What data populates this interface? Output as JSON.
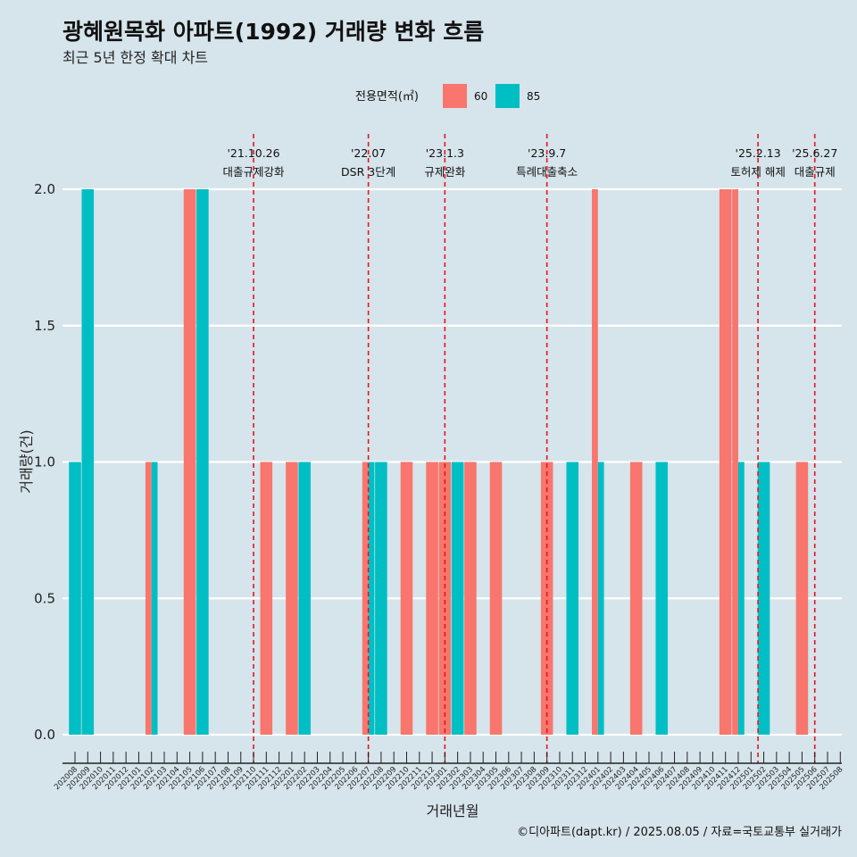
{
  "title": "광혜원목화 아파트(1992) 거래량 변화 흐름",
  "subtitle": "최근 5년 한정 확대 차트",
  "caption": "©디아파트(dapt.kr) / 2025.08.05 / 자료=국토교통부 실거래가",
  "colors": {
    "background": "#d6e4eb",
    "s60": "#f8766d",
    "s85": "#00bfc4",
    "vline": "#e8141b",
    "grid": "#ffffff"
  },
  "chart_data": {
    "type": "bar",
    "xlabel": "거래년월",
    "ylabel": "거래량(건)",
    "ylim": [
      0,
      2
    ],
    "yticks": [
      "0.0",
      "0.5",
      "1.0",
      "1.5",
      "2.0"
    ],
    "legend": {
      "title": "전용면적(㎡)",
      "position": "top"
    },
    "categories": [
      "202008",
      "202009",
      "202010",
      "202011",
      "202012",
      "202101",
      "202102",
      "202103",
      "202104",
      "202105",
      "202106",
      "202107",
      "202108",
      "202109",
      "202110",
      "202111",
      "202112",
      "202201",
      "202202",
      "202203",
      "202204",
      "202205",
      "202206",
      "202207",
      "202208",
      "202209",
      "202210",
      "202211",
      "202212",
      "202301",
      "202302",
      "202303",
      "202304",
      "202305",
      "202306",
      "202307",
      "202308",
      "202309",
      "202310",
      "202311",
      "202312",
      "202401",
      "202402",
      "202403",
      "202404",
      "202405",
      "202406",
      "202407",
      "202408",
      "202409",
      "202410",
      "202411",
      "202412",
      "202501",
      "202502",
      "202503",
      "202504",
      "202505",
      "202506",
      "202507",
      "202508"
    ],
    "bars": [
      {
        "month": "202008",
        "area": "85",
        "count": 1
      },
      {
        "month": "202009",
        "area": "85",
        "count": 2
      },
      {
        "month": "202102",
        "area": "60",
        "count": 1
      },
      {
        "month": "202102",
        "area": "85",
        "count": 1
      },
      {
        "month": "202105",
        "area": "60",
        "count": 2
      },
      {
        "month": "202106",
        "area": "85",
        "count": 2
      },
      {
        "month": "202111",
        "area": "60",
        "count": 1
      },
      {
        "month": "202201",
        "area": "60",
        "count": 1
      },
      {
        "month": "202202",
        "area": "85",
        "count": 1
      },
      {
        "month": "202207",
        "area": "60",
        "count": 1
      },
      {
        "month": "202207",
        "area": "85",
        "count": 1
      },
      {
        "month": "202208",
        "area": "85",
        "count": 1
      },
      {
        "month": "202210",
        "area": "60",
        "count": 1
      },
      {
        "month": "202212",
        "area": "60",
        "count": 1
      },
      {
        "month": "202301",
        "area": "60",
        "count": 1
      },
      {
        "month": "202302",
        "area": "85",
        "count": 1
      },
      {
        "month": "202303",
        "area": "60",
        "count": 1
      },
      {
        "month": "202305",
        "area": "60",
        "count": 1
      },
      {
        "month": "202309",
        "area": "60",
        "count": 1
      },
      {
        "month": "202311",
        "area": "85",
        "count": 1
      },
      {
        "month": "202401",
        "area": "60",
        "count": 2
      },
      {
        "month": "202401",
        "area": "85",
        "count": 1
      },
      {
        "month": "202404",
        "area": "60",
        "count": 1
      },
      {
        "month": "202406",
        "area": "85",
        "count": 1
      },
      {
        "month": "202411",
        "area": "60",
        "count": 2
      },
      {
        "month": "202412",
        "area": "60",
        "count": 2
      },
      {
        "month": "202412",
        "area": "85",
        "count": 1
      },
      {
        "month": "202502",
        "area": "85",
        "count": 1
      },
      {
        "month": "202505",
        "area": "60",
        "count": 1
      }
    ],
    "series": [
      {
        "name": "60",
        "color": "#f8766d"
      },
      {
        "name": "85",
        "color": "#00bfc4"
      }
    ],
    "annotations": [
      {
        "month": "202110",
        "date": "'21.10.26",
        "label": "대출규제강화",
        "offset": 0.0
      },
      {
        "month": "202207",
        "date": "'22.07",
        "label": "DSR 3단계",
        "offset": 0.0
      },
      {
        "month": "202301",
        "date": "'23.1.3",
        "label": "규제완화",
        "offset": 0.0
      },
      {
        "month": "202309",
        "date": "'23.9.7",
        "label": "특례대출축소",
        "offset": 0.0
      },
      {
        "month": "202502",
        "date": "'25.2.13",
        "label": "토허제 해제",
        "offset": -0.45
      },
      {
        "month": "202506",
        "date": "'25.6.27",
        "label": "대출규제",
        "offset": 0.0
      }
    ]
  }
}
